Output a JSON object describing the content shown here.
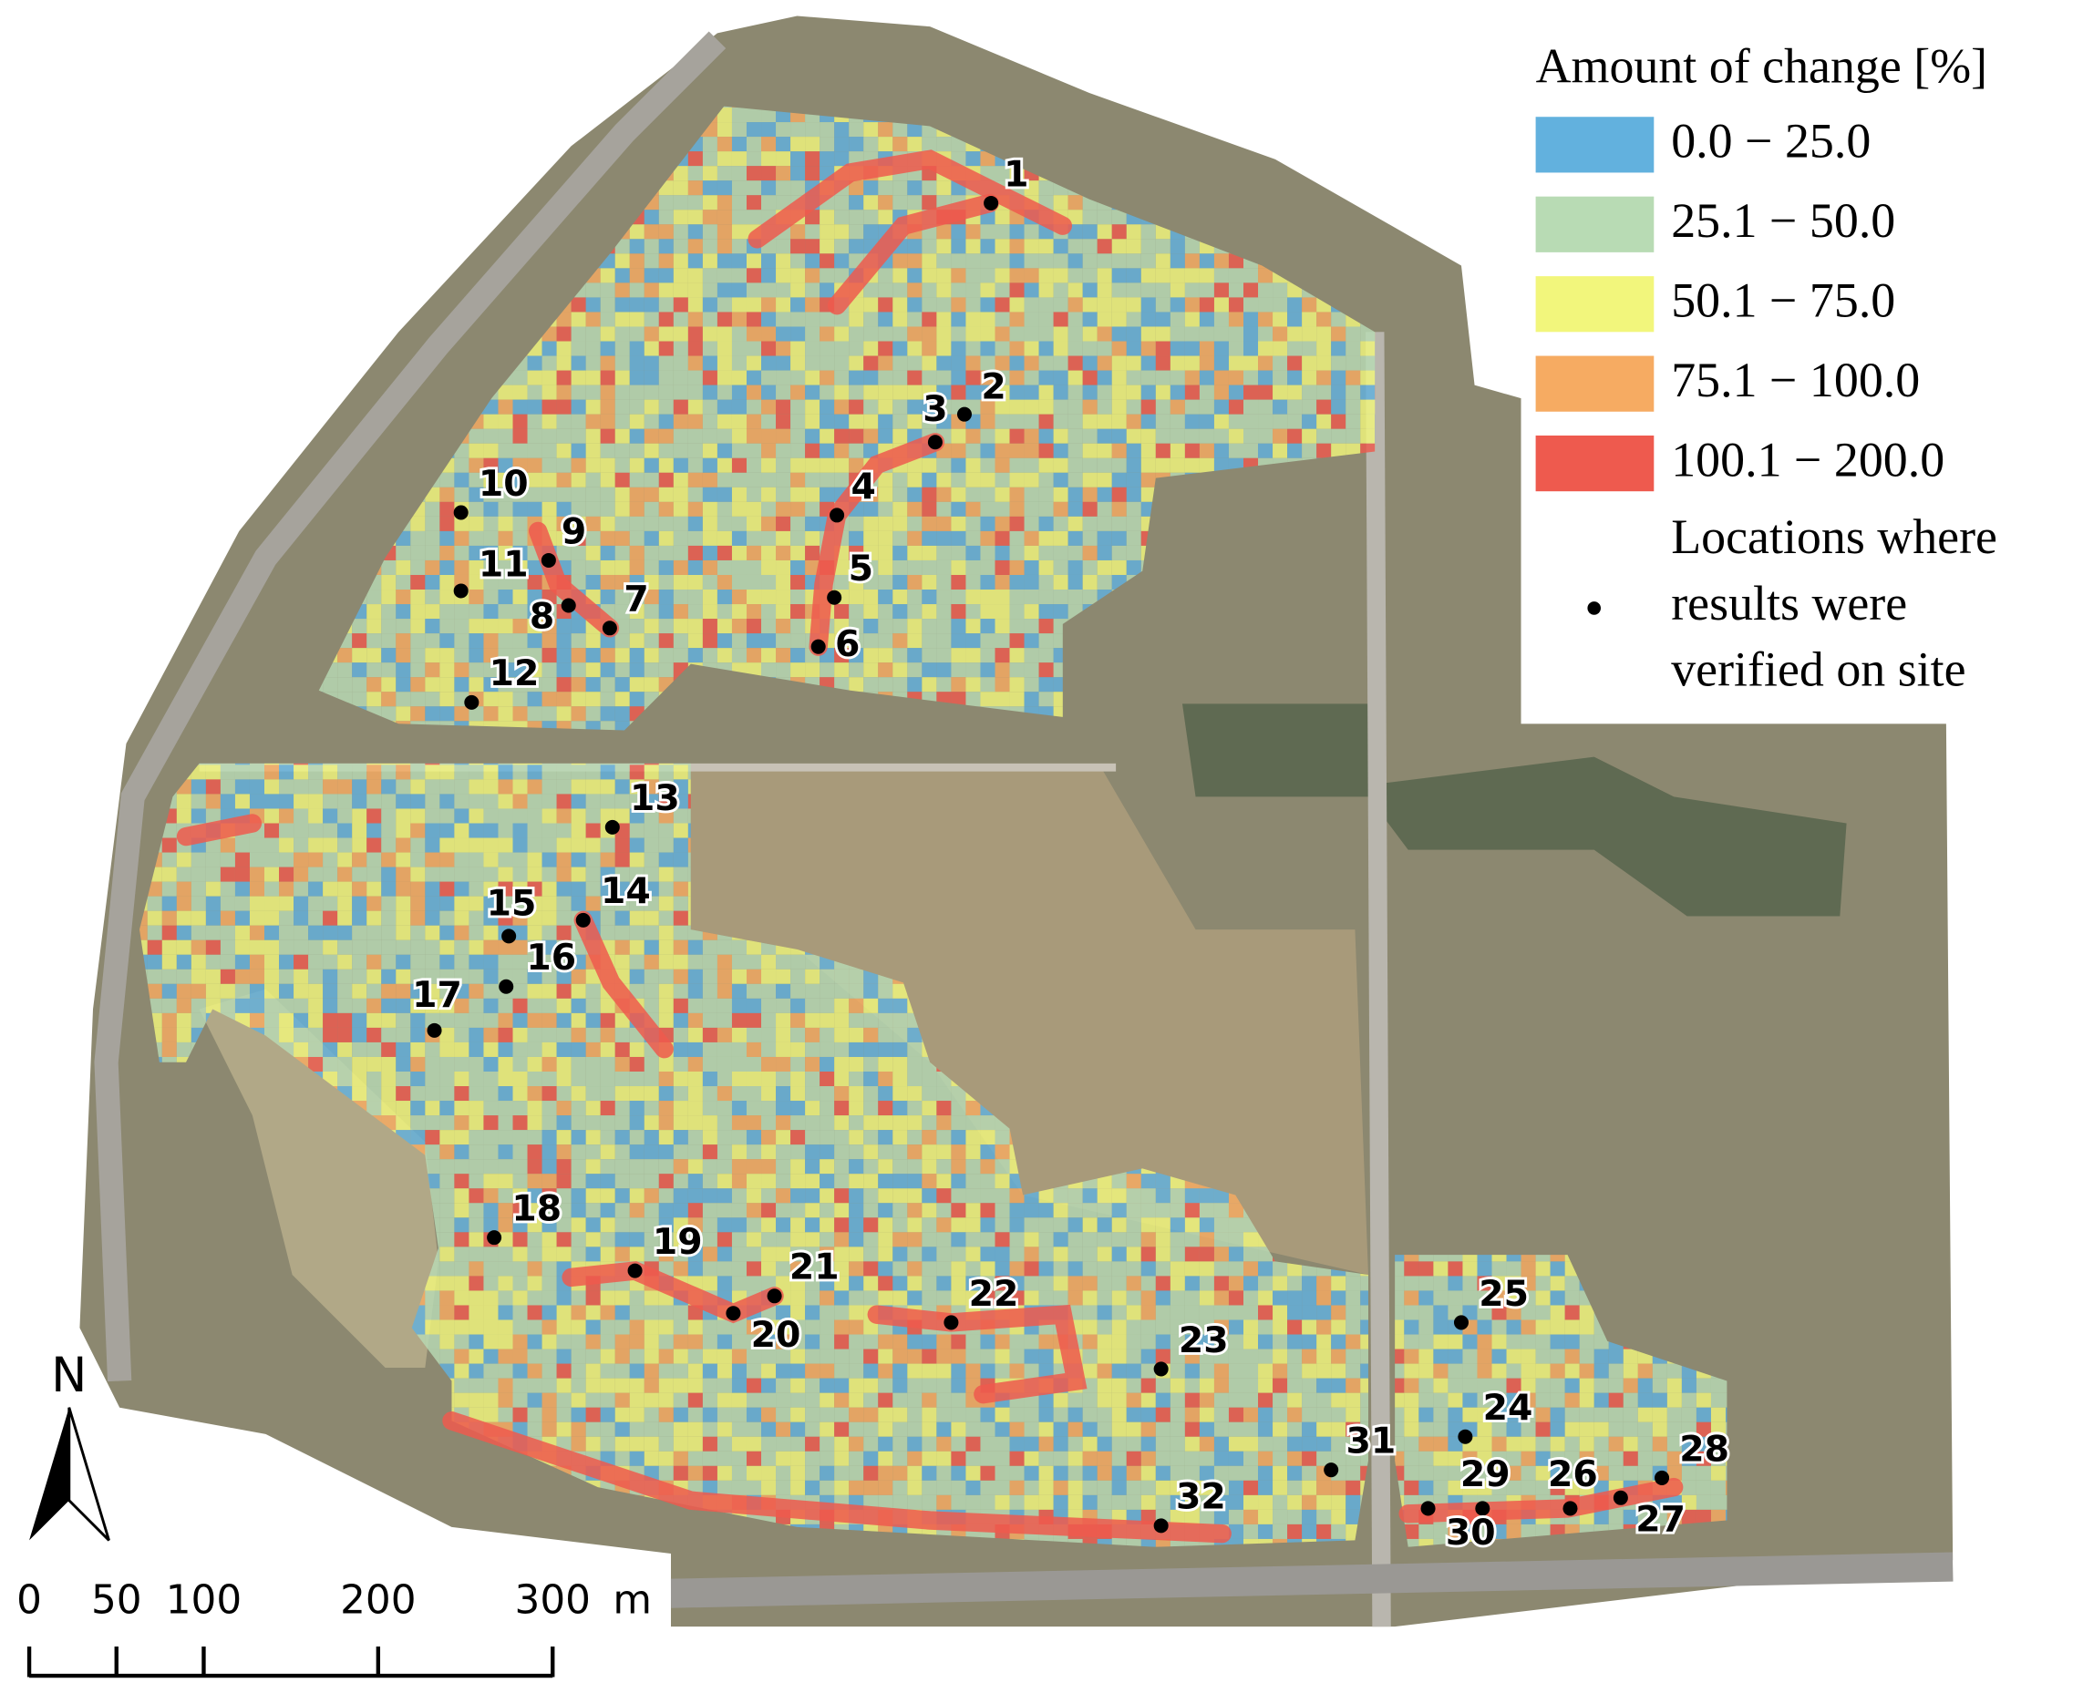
{
  "legend": {
    "title": "Amount of change [%]",
    "entries": [
      {
        "label": "0.0 − 25.0",
        "color": "#62b1de"
      },
      {
        "label": "25.1 − 50.0",
        "color": "#b8dbb4"
      },
      {
        "label": "50.1 − 75.0",
        "color": "#f2f67c"
      },
      {
        "label": "75.1 − 100.0",
        "color": "#f6ab62"
      },
      {
        "label": "100.1 − 200.0",
        "color": "#ee5a4e"
      }
    ],
    "points_label": [
      "Locations where",
      "results were",
      "verified on site"
    ]
  },
  "points": [
    "1",
    "2",
    "3",
    "4",
    "5",
    "6",
    "7",
    "8",
    "9",
    "10",
    "11",
    "12",
    "13",
    "14",
    "15",
    "16",
    "17",
    "18",
    "19",
    "20",
    "21",
    "22",
    "23",
    "24",
    "25",
    "26",
    "27",
    "28",
    "29",
    "30",
    "31",
    "32"
  ],
  "scale_bar": {
    "ticks": [
      0,
      50,
      100,
      200,
      300
    ],
    "unit": "m"
  },
  "north_label": "N"
}
